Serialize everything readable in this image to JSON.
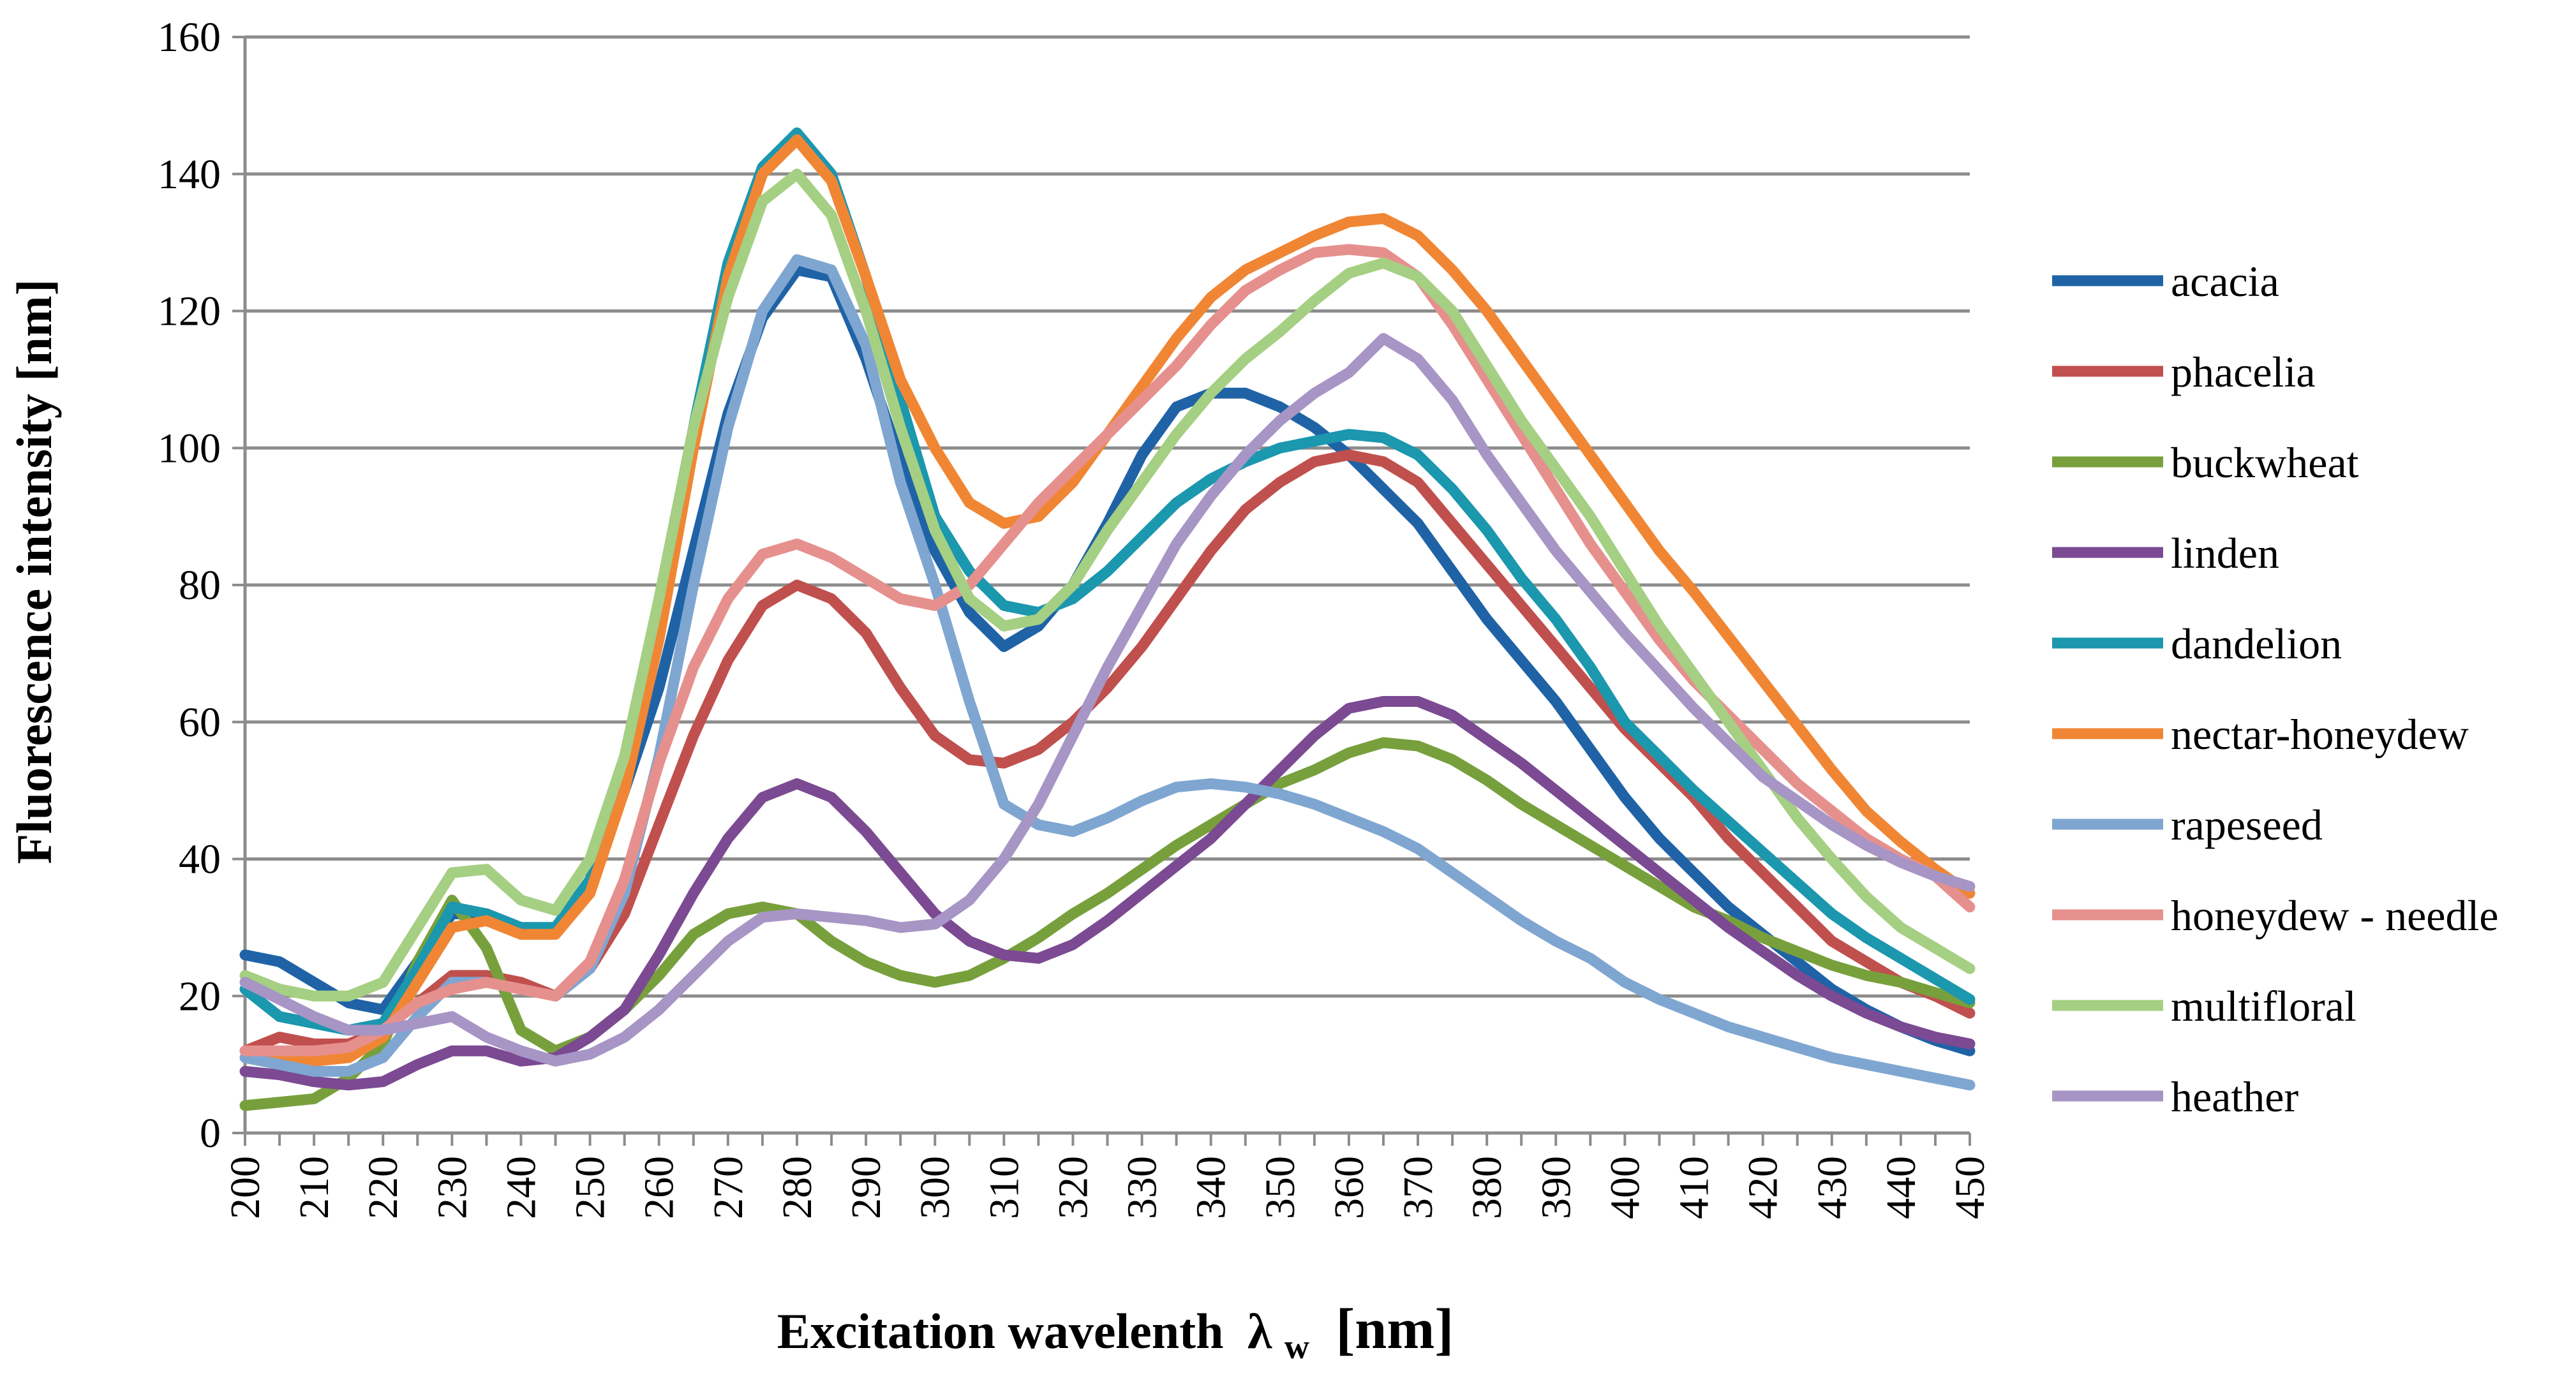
{
  "chart_data": {
    "type": "line",
    "title": "",
    "xlabel": "Excitation wavelenth",
    "xlabel_symbol": "λ",
    "xlabel_subscript": "w",
    "xlabel_unit": "[nm]",
    "ylabel": "Fluorescence intensity [nm]",
    "xlim": [
      200,
      450
    ],
    "ylim": [
      0,
      160
    ],
    "x_ticks": [
      200,
      210,
      220,
      230,
      240,
      250,
      260,
      270,
      280,
      290,
      300,
      310,
      320,
      330,
      340,
      350,
      360,
      370,
      380,
      390,
      400,
      410,
      420,
      430,
      440,
      450
    ],
    "y_ticks": [
      0,
      20,
      40,
      60,
      80,
      100,
      120,
      140,
      160
    ],
    "grid": "horizontal",
    "legend_position": "right",
    "x": [
      200,
      205,
      210,
      215,
      220,
      225,
      230,
      235,
      240,
      245,
      250,
      255,
      260,
      265,
      270,
      275,
      280,
      285,
      290,
      295,
      300,
      305,
      310,
      315,
      320,
      325,
      330,
      335,
      340,
      345,
      350,
      355,
      360,
      365,
      370,
      375,
      380,
      385,
      390,
      395,
      400,
      405,
      410,
      415,
      420,
      425,
      430,
      435,
      440,
      445,
      450
    ],
    "series": [
      {
        "name": "acacia",
        "color": "#1F63A6",
        "values": [
          26,
          25,
          22,
          19,
          18,
          25,
          32,
          32,
          30,
          30,
          36,
          50,
          65,
          85,
          105,
          119,
          126,
          125,
          113,
          98,
          85,
          76,
          71,
          74,
          80,
          89,
          99,
          106,
          108,
          108,
          106,
          103,
          99,
          94,
          89,
          82,
          75,
          69,
          63,
          56,
          49,
          43,
          38,
          33,
          29,
          25,
          21,
          18,
          15.5,
          13.5,
          12
        ]
      },
      {
        "name": "phacelia",
        "color": "#C0504D",
        "values": [
          12,
          14,
          13,
          13,
          15,
          19,
          23,
          23,
          22,
          20,
          24,
          32,
          45,
          58,
          69,
          77,
          80,
          78,
          73,
          65,
          58,
          54.5,
          54,
          56,
          60,
          65,
          71,
          78,
          85,
          91,
          95,
          98,
          99,
          98,
          95,
          89,
          83,
          77,
          71,
          65,
          59,
          54,
          49,
          43,
          38,
          33,
          28,
          25,
          22,
          20,
          17.5
        ]
      },
      {
        "name": "buckwheat",
        "color": "#77A03C",
        "values": [
          4,
          4.5,
          5,
          8,
          13,
          25,
          34,
          27,
          15,
          12,
          14,
          18,
          23,
          29,
          32,
          33,
          32,
          28,
          25,
          23,
          22,
          23,
          25.5,
          28.5,
          32,
          35,
          38.5,
          42,
          45,
          48,
          51,
          53,
          55.5,
          57,
          56.5,
          54.5,
          51.5,
          48,
          45,
          42,
          39,
          36,
          33,
          31,
          28.5,
          26.5,
          24.5,
          23,
          22,
          20.5,
          19
        ]
      },
      {
        "name": "linden",
        "color": "#7B4A92",
        "values": [
          9,
          8.5,
          7.5,
          7,
          7.5,
          10,
          12,
          12,
          10.5,
          11,
          14,
          18,
          26,
          35,
          43,
          49,
          51,
          49,
          44,
          38,
          32,
          28,
          26,
          25.5,
          27.5,
          31,
          35,
          39,
          43,
          48,
          53,
          58,
          62,
          63,
          63,
          61,
          57.5,
          54,
          50,
          46,
          42,
          38,
          34,
          30,
          26.5,
          23,
          20,
          17.5,
          15.5,
          14,
          13
        ]
      },
      {
        "name": "dandelion",
        "color": "#1B97AE",
        "values": [
          21,
          17,
          16,
          15,
          16,
          24,
          33,
          32,
          30,
          30,
          37,
          53,
          75,
          103,
          127,
          141,
          146,
          140,
          125,
          107,
          90,
          82,
          77,
          76,
          78,
          82,
          87,
          92,
          95.5,
          98,
          100,
          101,
          102,
          101.5,
          99,
          94,
          88,
          81,
          75,
          68,
          60,
          55,
          50,
          45.5,
          41,
          36.5,
          32,
          28.5,
          25.5,
          22.5,
          19.5
        ]
      },
      {
        "name": "nectar-honeydew",
        "color": "#F08634",
        "values": [
          12,
          11,
          10.5,
          11,
          14,
          22,
          30,
          31,
          29,
          29,
          35,
          50,
          72,
          100,
          125,
          140,
          145,
          139,
          125,
          110,
          100,
          92,
          89,
          90,
          95,
          102,
          109,
          116,
          122,
          126,
          128.5,
          131,
          133,
          133.5,
          131,
          126,
          120,
          113,
          106,
          99,
          92,
          85,
          79,
          72.5,
          66,
          59.5,
          53,
          47,
          42.5,
          38.5,
          35
        ]
      },
      {
        "name": "rapeseed",
        "color": "#7FA6D1",
        "values": [
          11,
          10,
          9,
          9,
          11,
          17,
          22,
          22,
          21,
          20,
          24,
          35,
          55,
          80,
          103,
          120,
          127.5,
          126,
          115,
          95,
          80,
          63,
          48,
          45,
          44,
          46,
          48.5,
          50.5,
          51,
          50.5,
          49.5,
          48,
          46,
          44,
          41.5,
          38,
          34.5,
          31,
          28,
          25.5,
          22,
          19.5,
          17.5,
          15.5,
          14,
          12.5,
          11,
          10,
          9,
          8,
          7
        ]
      },
      {
        "name": "honeydew - needle",
        "color": "#E6908E",
        "values": [
          12,
          12,
          12,
          12.5,
          15,
          19,
          21,
          22,
          21,
          20,
          25,
          37,
          54,
          68,
          78,
          84.5,
          86,
          84,
          81,
          78,
          77,
          80,
          86,
          92,
          97,
          102,
          107,
          112,
          118,
          123,
          126,
          128.5,
          129,
          128.5,
          125,
          118,
          110,
          102,
          94,
          86,
          79,
          72,
          66,
          61,
          56,
          51,
          47,
          43,
          40,
          37.5,
          33
        ]
      },
      {
        "name": "multifloral",
        "color": "#A5CF82",
        "values": [
          23,
          21,
          20,
          20,
          22,
          30,
          38,
          38.5,
          34,
          32.5,
          40,
          55,
          78,
          103,
          122,
          136,
          140,
          134,
          120,
          103,
          88,
          78,
          74,
          75,
          80,
          88,
          95,
          102,
          108,
          113,
          117,
          121.5,
          125.5,
          127,
          125,
          120,
          112,
          104,
          97,
          90,
          82,
          74,
          67,
          60,
          53,
          46,
          40,
          34.5,
          30,
          27,
          24
        ]
      },
      {
        "name": "heather",
        "color": "#A795C5",
        "values": [
          22,
          19.5,
          17,
          15,
          15,
          16,
          17,
          14,
          12,
          10.5,
          11.5,
          14,
          18,
          23,
          28,
          31.5,
          32,
          31.5,
          31,
          30,
          30.5,
          34,
          40,
          48,
          58,
          68,
          77,
          86,
          93,
          99,
          104,
          108,
          111,
          116,
          113,
          107,
          99,
          92,
          85,
          79,
          73,
          67.5,
          62,
          57,
          52,
          48.5,
          45,
          42,
          39.5,
          37.5,
          36
        ]
      }
    ]
  }
}
